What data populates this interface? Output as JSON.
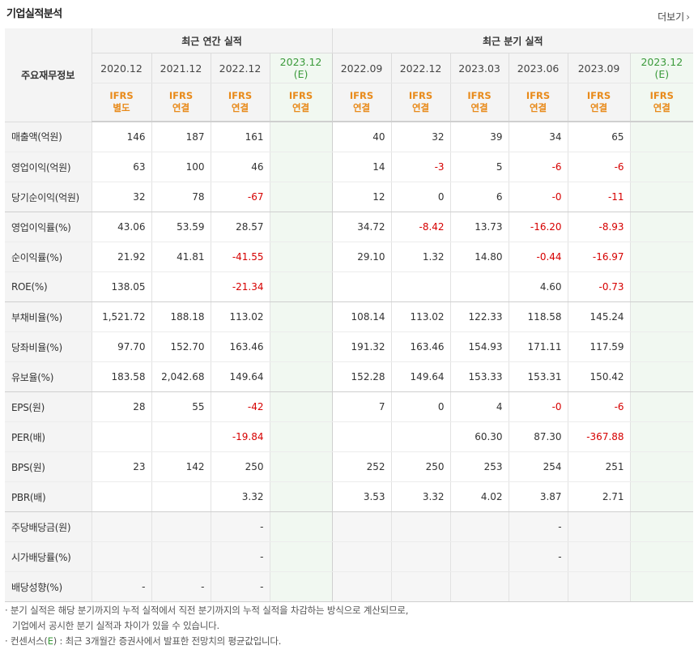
{
  "title": "기업실적분석",
  "more_label": "더보기",
  "header": {
    "row_label": "주요재무정보",
    "annual_group": "최근 연간 실적",
    "quarter_group": "최근 분기 실적"
  },
  "columns": [
    {
      "date": "2020.12",
      "est": "",
      "ifrs1": "IFRS",
      "ifrs2": "별도"
    },
    {
      "date": "2021.12",
      "est": "",
      "ifrs1": "IFRS",
      "ifrs2": "연결"
    },
    {
      "date": "2022.12",
      "est": "",
      "ifrs1": "IFRS",
      "ifrs2": "연결"
    },
    {
      "date": "2023.12",
      "est": "(E)",
      "ifrs1": "IFRS",
      "ifrs2": "연결"
    },
    {
      "date": "2022.09",
      "est": "",
      "ifrs1": "IFRS",
      "ifrs2": "연결"
    },
    {
      "date": "2022.12",
      "est": "",
      "ifrs1": "IFRS",
      "ifrs2": "연결"
    },
    {
      "date": "2023.03",
      "est": "",
      "ifrs1": "IFRS",
      "ifrs2": "연결"
    },
    {
      "date": "2023.06",
      "est": "",
      "ifrs1": "IFRS",
      "ifrs2": "연결"
    },
    {
      "date": "2023.09",
      "est": "",
      "ifrs1": "IFRS",
      "ifrs2": "연결"
    },
    {
      "date": "2023.12",
      "est": "(E)",
      "ifrs1": "IFRS",
      "ifrs2": "연결"
    }
  ],
  "rows": [
    {
      "label": "매출액(억원)",
      "values": [
        "146",
        "187",
        "161",
        "",
        "40",
        "32",
        "39",
        "34",
        "65",
        ""
      ]
    },
    {
      "label": "영업이익(억원)",
      "values": [
        "63",
        "100",
        "46",
        "",
        "14",
        "-3",
        "5",
        "-6",
        "-6",
        ""
      ]
    },
    {
      "label": "당기순이익(억원)",
      "values": [
        "32",
        "78",
        "-67",
        "",
        "12",
        "0",
        "6",
        "-0",
        "-11",
        ""
      ]
    },
    {
      "label": "영업이익률(%)",
      "values": [
        "43.06",
        "53.59",
        "28.57",
        "",
        "34.72",
        "-8.42",
        "13.73",
        "-16.20",
        "-8.93",
        ""
      ]
    },
    {
      "label": "순이익률(%)",
      "values": [
        "21.92",
        "41.81",
        "-41.55",
        "",
        "29.10",
        "1.32",
        "14.80",
        "-0.44",
        "-16.97",
        ""
      ]
    },
    {
      "label": "ROE(%)",
      "values": [
        "138.05",
        "",
        "-21.34",
        "",
        "",
        "",
        "",
        "4.60",
        "-0.73",
        ""
      ]
    },
    {
      "label": "부채비율(%)",
      "values": [
        "1,521.72",
        "188.18",
        "113.02",
        "",
        "108.14",
        "113.02",
        "122.33",
        "118.58",
        "145.24",
        ""
      ]
    },
    {
      "label": "당좌비율(%)",
      "values": [
        "97.70",
        "152.70",
        "163.46",
        "",
        "191.32",
        "163.46",
        "154.93",
        "171.11",
        "117.59",
        ""
      ]
    },
    {
      "label": "유보율(%)",
      "values": [
        "183.58",
        "2,042.68",
        "149.64",
        "",
        "152.28",
        "149.64",
        "153.33",
        "153.31",
        "150.42",
        ""
      ]
    },
    {
      "label": "EPS(원)",
      "values": [
        "28",
        "55",
        "-42",
        "",
        "7",
        "0",
        "4",
        "-0",
        "-6",
        ""
      ]
    },
    {
      "label": "PER(배)",
      "values": [
        "",
        "",
        "-19.84",
        "",
        "",
        "",
        "60.30",
        "87.30",
        "-367.88",
        ""
      ]
    },
    {
      "label": "BPS(원)",
      "values": [
        "23",
        "142",
        "250",
        "",
        "252",
        "250",
        "253",
        "254",
        "251",
        ""
      ]
    },
    {
      "label": "PBR(배)",
      "values": [
        "",
        "",
        "3.32",
        "",
        "3.53",
        "3.32",
        "4.02",
        "3.87",
        "2.71",
        ""
      ]
    },
    {
      "label": "주당배당금(원)",
      "values": [
        "",
        "",
        "-",
        "",
        "",
        "",
        "",
        "-",
        "",
        ""
      ]
    },
    {
      "label": "시가배당률(%)",
      "values": [
        "",
        "",
        "-",
        "",
        "",
        "",
        "",
        "-",
        "",
        ""
      ]
    },
    {
      "label": "배당성향(%)",
      "values": [
        "-",
        "-",
        "-",
        "",
        "",
        "",
        "",
        "",
        "",
        ""
      ]
    }
  ],
  "notes": {
    "line1": "· 분기 실적은 해당 분기까지의 누적 실적에서 직전 분기까지의 누적 실적을 차감하는 방식으로 계산되므로,",
    "line2": "기업에서 공시한 분기 실적과 차이가 있을 수 있습니다.",
    "line3_a": "· 컨센서스(",
    "line3_e": "E",
    "line3_b": ") : 최근 3개월간 증권사에서 발표한 전망치의 평균값입니다."
  }
}
